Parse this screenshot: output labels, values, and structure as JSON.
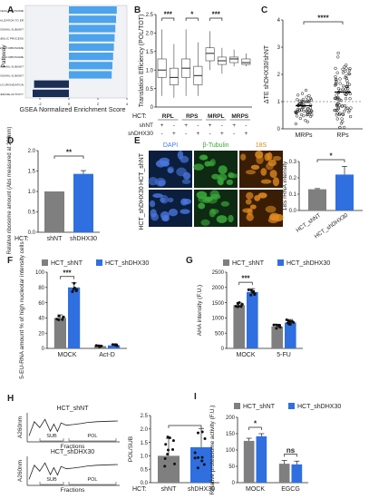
{
  "panels": {
    "A": {
      "letter": "A",
      "chart_data": {
        "type": "bar",
        "orientation": "horizontal",
        "xlabel": "GSEA Normalized Enrichment Score",
        "ylabel": "Pathway",
        "xlim": [
          -3,
          4
        ],
        "xticks": [
          "-2",
          "0",
          "2",
          "4"
        ],
        "categories": [
          "KEGG RIBOSOME",
          "GO PROTEIN LOCALIZATION TO ER",
          "GO RIBOSOMAL SUBUNIT",
          "GO MRNA CATABOLIC PROCESS",
          "CYTOSOLIC RIBOSOME",
          "GO RIBOSOME",
          "GO LARGE RIBOSOMAL SUBUNIT",
          "GO CYTOSOLIC LARGE RIBOSOMAL SUBUNIT",
          "GO CELLULAR GLUCURONIDATION",
          "GO GLUCURONOSYL TRANSFERASE ACTIVITY"
        ],
        "values": [
          3.3,
          3.25,
          3.2,
          3.15,
          3.1,
          3.05,
          3.0,
          2.95,
          -2.4,
          -2.5
        ]
      }
    },
    "B": {
      "letter": "B",
      "chart_data": {
        "type": "box",
        "ylabel": "Translation Efficiency (POL/TOT)",
        "ylim": [
          0,
          2.5
        ],
        "yticks": [
          "0",
          "0.5",
          "1.0",
          "1.5",
          "2.0",
          "2.5"
        ],
        "groups": [
          "RPL",
          "RPS",
          "MRPL",
          "MRPS"
        ],
        "row_labels": [
          "HCT:",
          "shNT",
          "shDHX30"
        ],
        "signs_shNT": [
          "+",
          "-",
          "+",
          "-",
          "+",
          "-",
          "+",
          "-"
        ],
        "signs_shDHX30": [
          "-",
          "+",
          "-",
          "+",
          "-",
          "+",
          "-",
          "+"
        ],
        "boxes": [
          {
            "q1": 0.8,
            "median": 1.0,
            "q3": 1.3,
            "min": 0.3,
            "max": 2.1
          },
          {
            "q1": 0.6,
            "median": 0.8,
            "q3": 1.05,
            "min": 0.25,
            "max": 1.7
          },
          {
            "q1": 0.8,
            "median": 1.05,
            "q3": 1.3,
            "min": 0.3,
            "max": 2.1
          },
          {
            "q1": 0.6,
            "median": 0.85,
            "q3": 1.1,
            "min": 0.3,
            "max": 1.75
          },
          {
            "q1": 1.25,
            "median": 1.45,
            "q3": 1.6,
            "min": 1.0,
            "max": 2.05
          },
          {
            "q1": 1.15,
            "median": 1.25,
            "q3": 1.35,
            "min": 0.9,
            "max": 1.6
          },
          {
            "q1": 1.2,
            "median": 1.3,
            "q3": 1.35,
            "min": 1.1,
            "max": 1.55
          },
          {
            "q1": 1.15,
            "median": 1.2,
            "q3": 1.3,
            "min": 1.1,
            "max": 1.45
          }
        ],
        "sig": [
          "***",
          "*",
          "***"
        ]
      }
    },
    "C": {
      "letter": "C",
      "chart_data": {
        "type": "scatter",
        "ylabel": "ΔTE shDHX30/shNT",
        "ylim": [
          0,
          4
        ],
        "yticks": [
          "0",
          "1",
          "2",
          "3",
          "4"
        ],
        "categories": [
          "MRPs",
          "RPs"
        ],
        "reference_line": 1,
        "medians": [
          0.85,
          1.35
        ],
        "sig": "****"
      }
    },
    "D": {
      "letter": "D",
      "chart_data": {
        "type": "bar",
        "ylabel": "Relative ribosome amount (Abs measured at 260nm)",
        "ylim": [
          0,
          2.0
        ],
        "yticks": [
          "0.0",
          "0.5",
          "1.0",
          "1.5",
          "2.0"
        ],
        "row_label": "HCT:",
        "categories": [
          "shNT",
          "shDHX30"
        ],
        "values": [
          1.0,
          1.43
        ],
        "errors": [
          0,
          0.08
        ],
        "colors": [
          "#7f7f7f",
          "#2f6fe0"
        ],
        "sig": "**"
      }
    },
    "E": {
      "letter": "E",
      "channels": [
        "DAPI",
        "β-Tubulin",
        "18S"
      ],
      "channel_colors": [
        "#4a78e0",
        "#3aa83a",
        "#e08a20"
      ],
      "row_labels": [
        "HCT_shNT",
        "HCT_shDHX30"
      ],
      "chart_data": {
        "type": "bar",
        "ylabel": "18S rRNA intensity",
        "ylim": [
          0,
          0.3
        ],
        "yticks": [
          "0.0",
          "0.1",
          "0.2",
          "0.3"
        ],
        "categories": [
          "HCT_shNT",
          "HCT_shDHX30"
        ],
        "values": [
          0.13,
          0.22
        ],
        "errors": [
          0.004,
          0.05
        ],
        "colors": [
          "#7f7f7f",
          "#2f6fe0"
        ],
        "sig": "*"
      }
    },
    "F": {
      "letter": "F",
      "legend": [
        "HCT_shNT",
        "HCT_shDHX30"
      ],
      "chart_data": {
        "type": "bar",
        "ylabel": "5-EU-RNA amount % of high nucleolar intensity cells",
        "ylim": [
          0,
          100
        ],
        "yticks": [
          "0",
          "20",
          "40",
          "60",
          "80",
          "100"
        ],
        "categories": [
          "MOCK",
          "Act-D"
        ],
        "series": [
          {
            "name": "HCT_shNT",
            "values": [
              40,
              3
            ],
            "errors": [
              4,
              1
            ],
            "color": "#7f7f7f"
          },
          {
            "name": "HCT_shDHX30",
            "values": [
              80,
              4
            ],
            "errors": [
              6,
              1.5
            ],
            "color": "#2f6fe0"
          }
        ],
        "sig": "***"
      }
    },
    "G": {
      "letter": "G",
      "legend": [
        "HCT_shNT",
        "HCT_shDHX30"
      ],
      "chart_data": {
        "type": "bar",
        "ylabel": "AHA intensity (F.U.)",
        "ylim": [
          0,
          2500
        ],
        "yticks": [
          "0",
          "500",
          "1000",
          "1500",
          "2000",
          "2500"
        ],
        "categories": [
          "MOCK",
          "5-FU"
        ],
        "series": [
          {
            "name": "HCT_shNT",
            "values": [
              1420,
              720
            ],
            "errors": [
              90,
              70
            ],
            "color": "#7f7f7f"
          },
          {
            "name": "HCT_shDHX30",
            "values": [
              1850,
              850
            ],
            "errors": [
              110,
              100
            ],
            "color": "#2f6fe0"
          }
        ],
        "sig": "***"
      }
    },
    "H": {
      "letter": "H",
      "profiles": [
        {
          "title": "HCT_shNT",
          "ylabel": "A260nm",
          "xlabel": "Fractions",
          "sub_label": "SUB",
          "pol_label": "POL"
        },
        {
          "title": "HCT_shDHX30",
          "ylabel": "A260nm",
          "xlabel": "Fractions",
          "sub_label": "SUB",
          "pol_label": "POL"
        }
      ],
      "chart_data": {
        "type": "bar",
        "ylabel": "POL/SUB",
        "ylim": [
          0,
          2.5
        ],
        "yticks": [
          "0.0",
          "0.5",
          "1.0",
          "1.5",
          "2.0",
          "2.5"
        ],
        "row_label": "HCT:",
        "categories": [
          "shNT",
          "shDHX30"
        ],
        "values": [
          1.0,
          1.32
        ],
        "errors": [
          0.65,
          0.7
        ],
        "colors": [
          "#7f7f7f",
          "#2f6fe0"
        ]
      }
    },
    "I": {
      "letter": "I",
      "legend": [
        "HCT_shNT",
        "HCT_shDHX30"
      ],
      "chart_data": {
        "type": "bar",
        "ylabel": "Relative proteasome activity (F.U.)",
        "ylim": [
          0,
          200
        ],
        "yticks": [
          "0",
          "50",
          "100",
          "150",
          "200"
        ],
        "categories": [
          "MOCK",
          "EGCG"
        ],
        "series": [
          {
            "name": "HCT_shNT",
            "values": [
              128,
              58
            ],
            "errors": [
              8,
              10
            ],
            "color": "#7f7f7f"
          },
          {
            "name": "HCT_shDHX30",
            "values": [
              142,
              56
            ],
            "errors": [
              8,
              10
            ],
            "color": "#2f6fe0"
          }
        ],
        "sig": [
          "*",
          "ns"
        ]
      }
    }
  }
}
